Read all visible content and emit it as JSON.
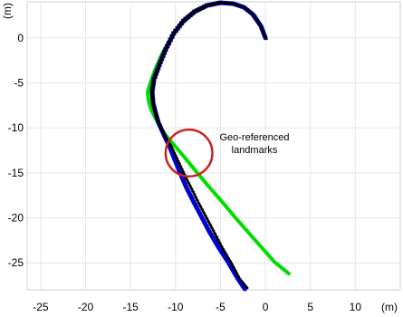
{
  "chart_data": {
    "type": "line",
    "xlabel": "(m)",
    "ylabel": "(m)",
    "xlim": [
      -26.5,
      15
    ],
    "ylim": [
      -28,
      4
    ],
    "xticks": [
      -25,
      -20,
      -15,
      -10,
      -5,
      0,
      5,
      10
    ],
    "yticks": [
      0,
      -5,
      -10,
      -15,
      -20,
      -25
    ],
    "grid": true,
    "series": [
      {
        "color": "#00dd00",
        "x": [
          0,
          -0.4,
          -1.2,
          -2.2,
          -3.5,
          -5.0,
          -6.5,
          -8.0,
          -9.3,
          -10.5,
          -11.5,
          -12.3,
          -12.8,
          -13.1,
          -13.0,
          -12.7,
          -12.2,
          -11.7,
          -11.1,
          -10.5,
          -9.4,
          -8.0,
          -6.5,
          -5.0,
          -3.5,
          -2.0,
          -0.5,
          1.0,
          2.6
        ],
        "y": [
          0,
          1.2,
          2.5,
          3.3,
          3.8,
          3.9,
          3.6,
          2.8,
          1.6,
          0,
          -1.8,
          -3.6,
          -5.0,
          -6.0,
          -7.0,
          -8.0,
          -9.0,
          -9.9,
          -10.8,
          -11.5,
          -12.8,
          -14.5,
          -16.3,
          -18.0,
          -19.8,
          -21.5,
          -23.2,
          -24.9,
          -26.2
        ],
        "stroke_width": 4
      },
      {
        "color": "#0000cc",
        "x": [
          0,
          -0.5,
          -1.4,
          -2.4,
          -3.6,
          -5.0,
          -6.5,
          -7.9,
          -9.1,
          -10.2,
          -11.1,
          -11.8,
          -12.4,
          -12.6,
          -12.5,
          -12.2,
          -11.9,
          -11.5,
          -11.1,
          -10.7,
          -10.1,
          -9.5,
          -8.8,
          -8.0,
          -7.1,
          -6.2,
          -5.2,
          -4.1,
          -3.1,
          -2.3
        ],
        "y": [
          0,
          1.3,
          2.6,
          3.4,
          3.8,
          3.9,
          3.6,
          2.9,
          1.9,
          0.5,
          -1.3,
          -3.0,
          -4.6,
          -6.0,
          -7.2,
          -8.4,
          -9.4,
          -10.3,
          -11.2,
          -12.0,
          -13.5,
          -15.0,
          -16.6,
          -18.2,
          -19.9,
          -21.6,
          -23.3,
          -25.0,
          -26.7,
          -27.9
        ],
        "stroke_width": 5
      },
      {
        "color": "#000000",
        "x": [
          0,
          -0.5,
          -1.4,
          -2.4,
          -3.6,
          -5.0,
          -6.5,
          -7.9,
          -9.1,
          -10.2,
          -11.1,
          -11.8,
          -12.4,
          -12.6,
          -12.5,
          -12.2,
          -11.9,
          -11.5,
          -11.0,
          -10.5,
          -9.8,
          -9.1,
          -8.3,
          -7.5,
          -6.6,
          -5.7,
          -4.8,
          -3.8,
          -2.9,
          -2.0
        ],
        "y": [
          0,
          1.3,
          2.6,
          3.4,
          3.8,
          3.9,
          3.6,
          2.9,
          1.9,
          0.5,
          -1.3,
          -3.0,
          -4.6,
          -6.0,
          -7.2,
          -8.4,
          -9.4,
          -10.3,
          -11.2,
          -12.0,
          -13.5,
          -15.0,
          -16.6,
          -18.2,
          -19.9,
          -21.6,
          -23.3,
          -25.0,
          -26.7,
          -27.8
        ],
        "stroke_width": 2.5,
        "hatched": true
      }
    ],
    "annotations": [
      {
        "text_line1": "Geo-referenced",
        "text_line2": "landmarks",
        "circle_center": [
          -8.5,
          -12.8
        ],
        "circle_radius": 2.6,
        "circle_color": "#cc2222"
      }
    ]
  }
}
